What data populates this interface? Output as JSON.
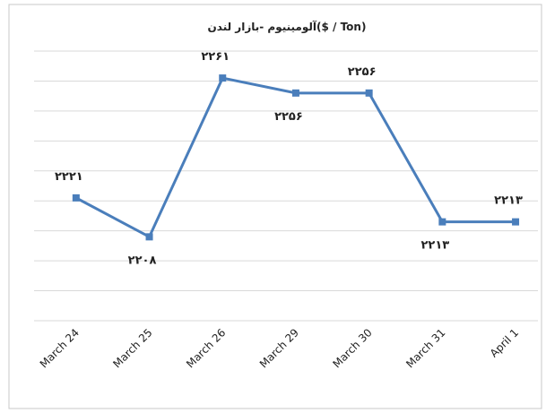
{
  "chart_data": {
    "type": "line",
    "title": "آلومینیوم -بازار لندن($ / Ton)",
    "categories": [
      "March 24",
      "March 25",
      "March 26",
      "March 29",
      "March 30",
      "March 31",
      "April 1"
    ],
    "series": [
      {
        "name": "آلومینیوم",
        "color": "#4a7ebb",
        "values": [
          2221,
          2208,
          2261,
          2256,
          2256,
          2213,
          2213
        ],
        "value_labels": [
          "۲۲۲۱",
          "۲۲۰۸",
          "۲۲۶۱",
          "۲۲۵۶",
          "۲۲۵۶",
          "۲۲۱۳",
          "۲۲۱۳"
        ]
      }
    ],
    "ylim": [
      2180,
      2270
    ],
    "yticks": [
      2180,
      2190,
      2200,
      2210,
      2220,
      2230,
      2240,
      2250,
      2260,
      2270
    ],
    "grid": true
  }
}
